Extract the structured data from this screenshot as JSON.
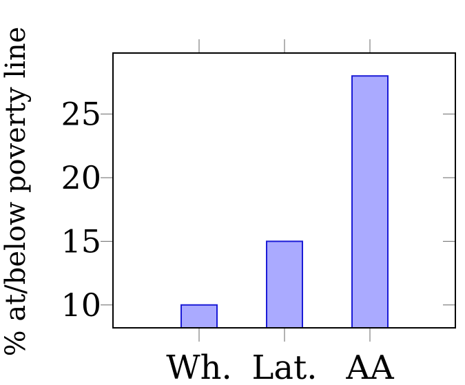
{
  "chart_data": {
    "type": "bar",
    "categories": [
      "Wh.",
      "Lat.",
      "AA"
    ],
    "values": [
      10,
      15,
      28
    ],
    "title": "",
    "xlabel": "",
    "ylabel": "% at/below poverty line",
    "ylim": [
      8.2,
      29.8
    ],
    "yticks": [
      "10",
      "15",
      "20",
      "25"
    ],
    "grid": false,
    "bar_fill": "#aaaaff",
    "bar_stroke": "#1a1ad6"
  }
}
